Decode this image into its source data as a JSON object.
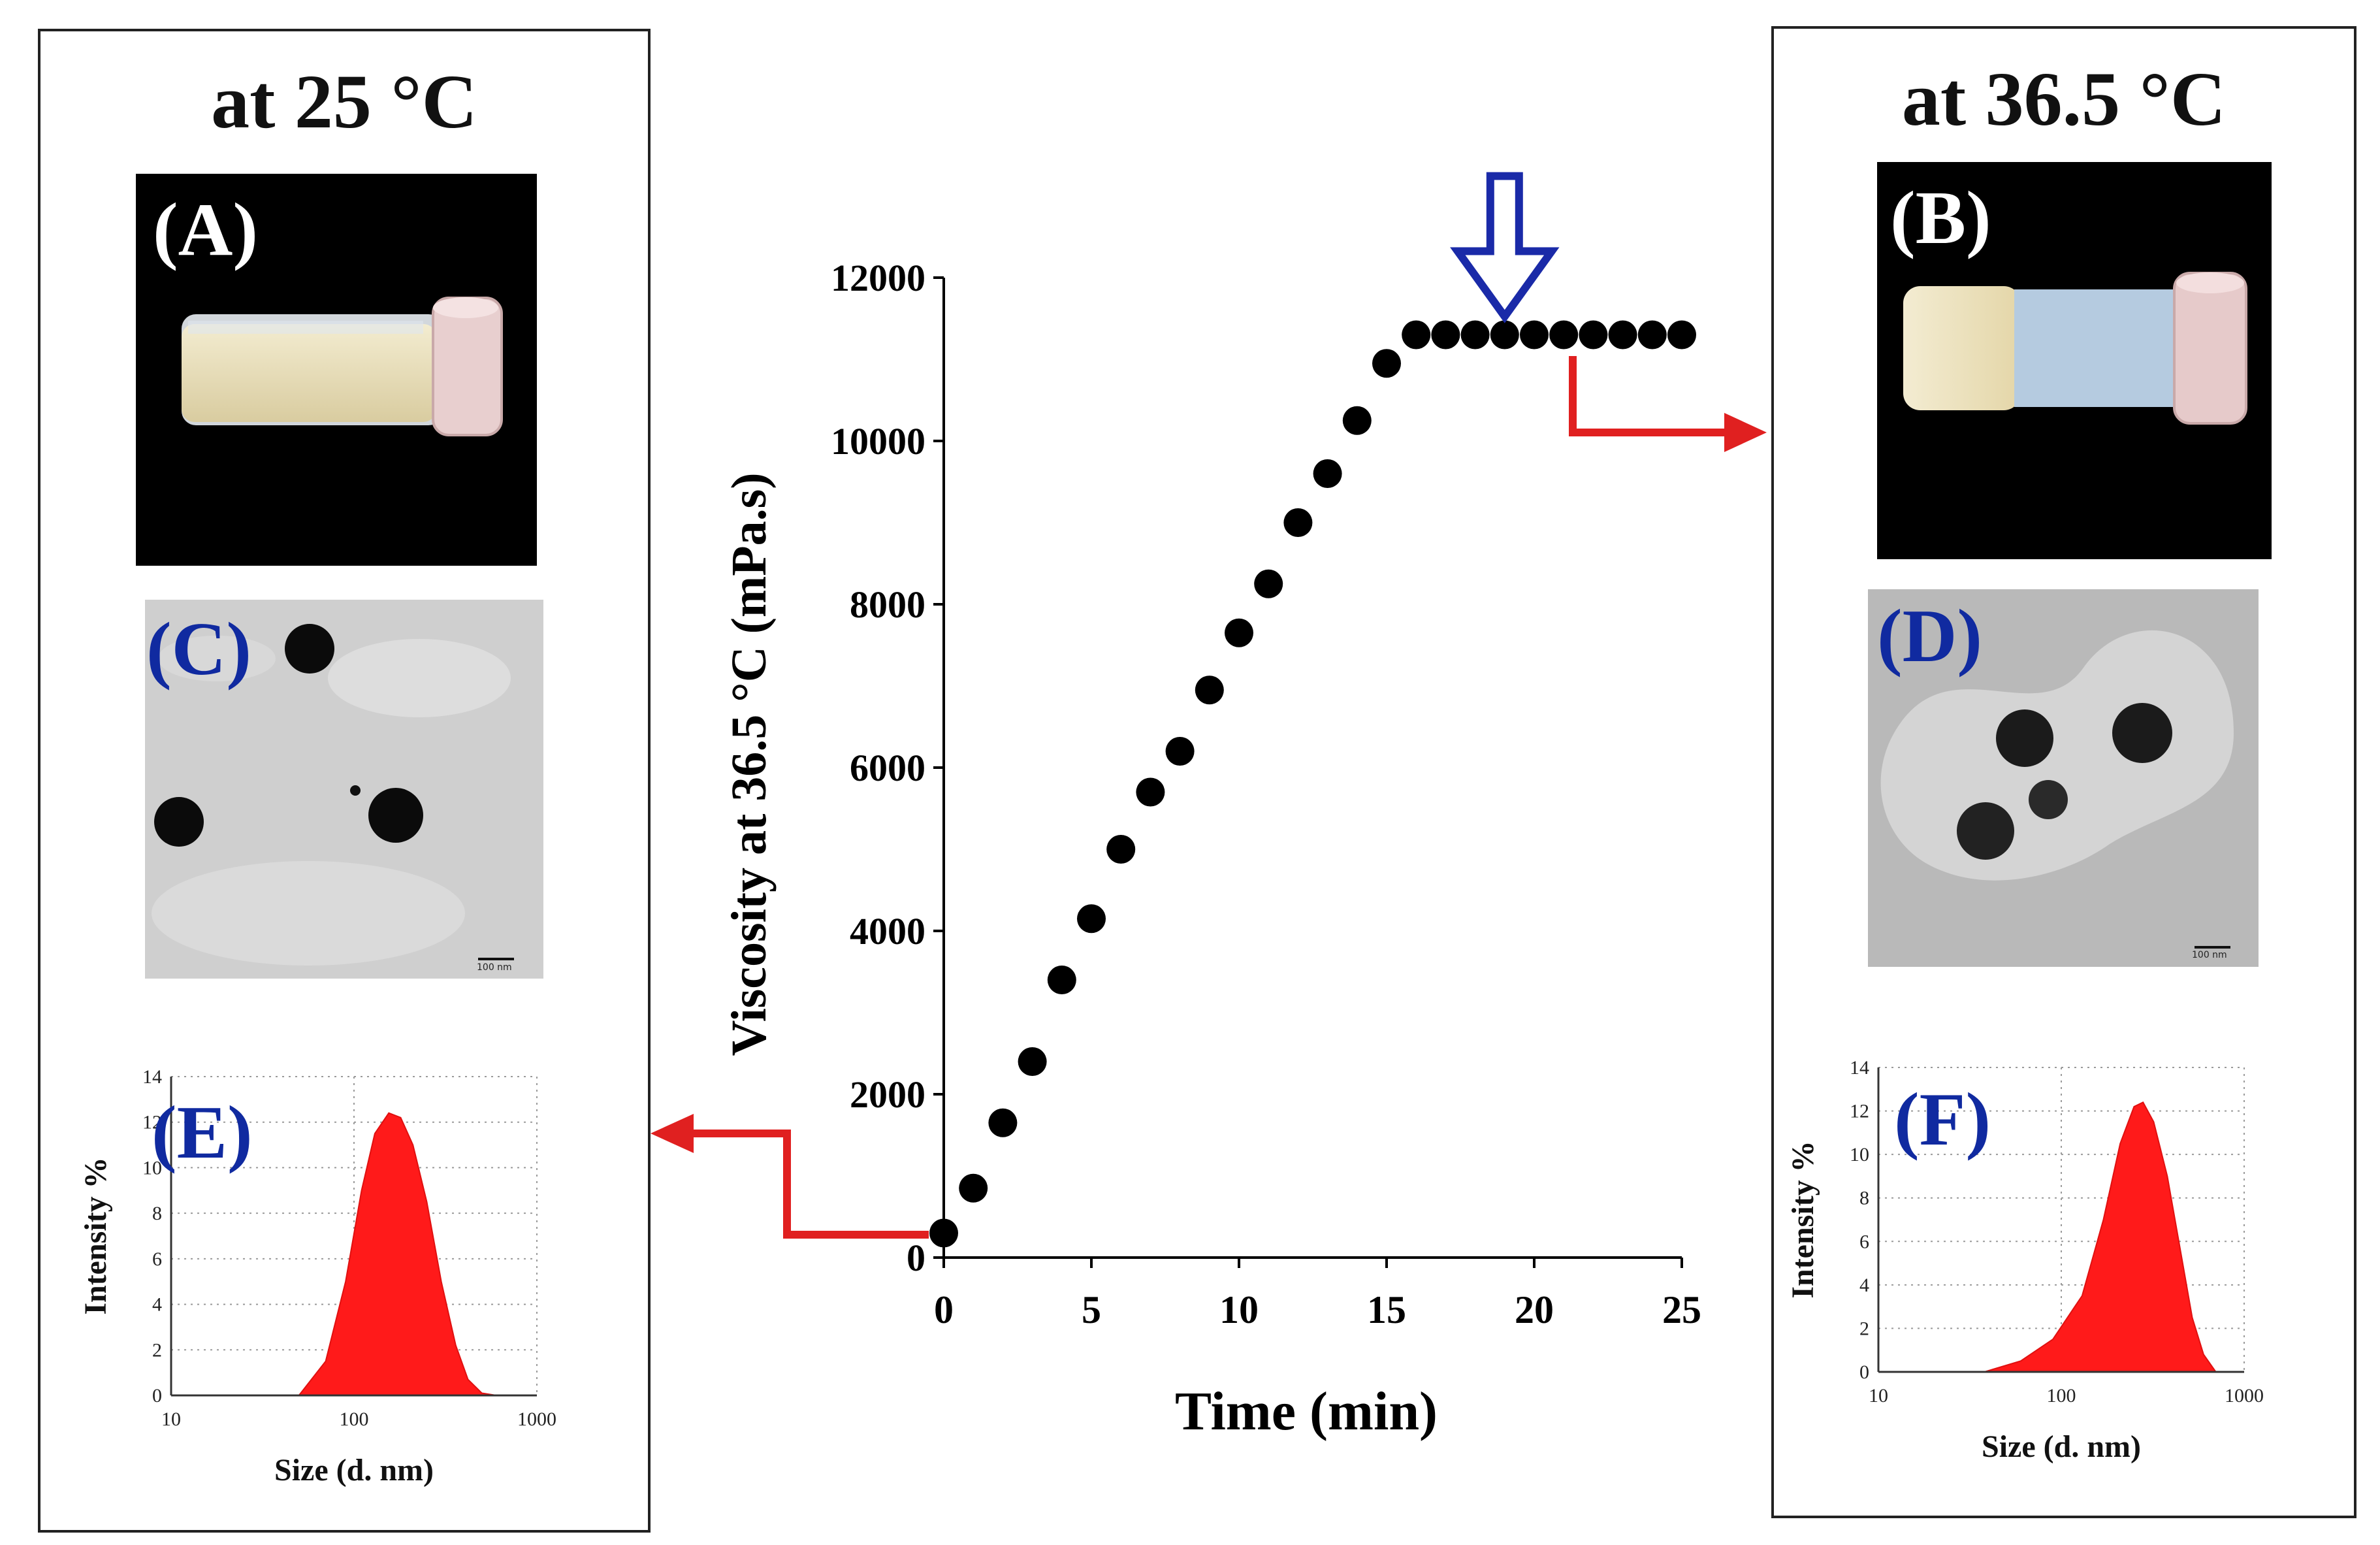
{
  "left_panel": {
    "title": "at 25 °C",
    "photo_label": "(A)",
    "tem_label": "(C)",
    "tem_scale": "100 nm",
    "dist_label": "(E)",
    "dist_ylabel": "Intensity %",
    "dist_xlabel": "Size (d. nm)",
    "dist_yticks": [
      "0",
      "2",
      "4",
      "6",
      "8",
      "10",
      "12",
      "14"
    ],
    "dist_xticks": [
      "10",
      "100",
      "1000"
    ]
  },
  "right_panel": {
    "title": "at 36.5 °C",
    "photo_label": "(B)",
    "tem_label": "(D)",
    "tem_scale": "100 nm",
    "dist_label": "(F)",
    "dist_ylabel": "Intensity %",
    "dist_xlabel": "Size (d. nm)",
    "dist_yticks": [
      "0",
      "2",
      "4",
      "6",
      "8",
      "10",
      "12",
      "14"
    ],
    "dist_xticks": [
      "10",
      "100",
      "1000"
    ]
  },
  "colors": {
    "marker": "#000000",
    "arrow_red": "#e02020",
    "arrow_blue": "#1a2aa8",
    "dist_fill": "#ff1a1a",
    "label_blue": "#102aa0"
  },
  "chart_data": [
    {
      "type": "scatter",
      "title": "",
      "xlabel": "Time (min)",
      "ylabel": "Viscosity at 36.5 °C (mPa.s)",
      "xlim": [
        0,
        25
      ],
      "ylim": [
        0,
        12000
      ],
      "xticks": [
        0,
        5,
        10,
        15,
        20,
        25
      ],
      "yticks": [
        0,
        2000,
        4000,
        6000,
        8000,
        10000,
        12000
      ],
      "x": [
        0,
        1,
        2,
        3,
        4,
        5,
        6,
        7,
        8,
        9,
        10,
        11,
        12,
        13,
        14,
        15,
        16,
        17,
        18,
        19,
        20,
        21,
        22,
        23,
        24,
        25
      ],
      "y": [
        300,
        850,
        1650,
        2400,
        3400,
        4150,
        5000,
        5700,
        6200,
        6950,
        7650,
        8250,
        9000,
        9600,
        10250,
        10950,
        11300,
        11300,
        11300,
        11300,
        11300,
        11300,
        11300,
        11300,
        11300,
        11300
      ],
      "annotations": [
        "blue arrow marks gel point near 19 min"
      ]
    },
    {
      "type": "area",
      "name": "E",
      "xscale": "log",
      "xlim": [
        10,
        1000
      ],
      "ylim": [
        0,
        14
      ],
      "x": [
        50,
        70,
        90,
        110,
        130,
        155,
        180,
        210,
        250,
        300,
        360,
        420,
        500,
        600
      ],
      "y": [
        0,
        1.5,
        5,
        9,
        11.5,
        12.4,
        12.2,
        11,
        8.5,
        5,
        2.2,
        0.7,
        0.1,
        0
      ]
    },
    {
      "type": "area",
      "name": "F",
      "xscale": "log",
      "xlim": [
        10,
        1000
      ],
      "ylim": [
        0,
        14
      ],
      "x": [
        38,
        60,
        90,
        130,
        170,
        210,
        250,
        280,
        320,
        380,
        450,
        520,
        600,
        700
      ],
      "y": [
        0,
        0.5,
        1.5,
        3.5,
        7,
        10.5,
        12.2,
        12.4,
        11.5,
        9,
        5.5,
        2.5,
        0.8,
        0
      ]
    }
  ]
}
